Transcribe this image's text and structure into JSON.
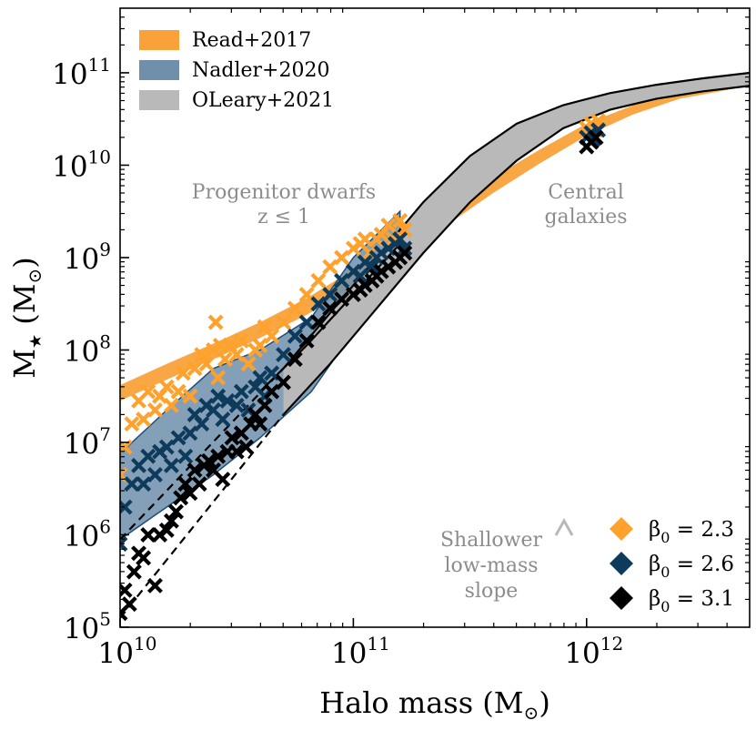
{
  "chart_data": {
    "type": "scatter",
    "xlabel": "Halo mass (M",
    "ylabel_main": "M",
    "ylabel_unit": "(M",
    "xscale": "log",
    "yscale": "log",
    "xlim": [
      10000000000.0,
      5000000000000.0
    ],
    "ylim": [
      100000.0,
      500000000000.0
    ],
    "grid": false,
    "x_ticks": [
      {
        "exp": 10,
        "base": "10",
        "power": "10"
      },
      {
        "exp": 11,
        "base": "10",
        "power": "11"
      },
      {
        "exp": 12,
        "base": "10",
        "power": "12"
      }
    ],
    "y_ticks": [
      {
        "exp": 5,
        "base": "10",
        "power": "5"
      },
      {
        "exp": 6,
        "base": "10",
        "power": "6"
      },
      {
        "exp": 7,
        "base": "10",
        "power": "7"
      },
      {
        "exp": 8,
        "base": "10",
        "power": "8"
      },
      {
        "exp": 9,
        "base": "10",
        "power": "9"
      },
      {
        "exp": 10,
        "base": "10",
        "power": "10"
      },
      {
        "exp": 11,
        "base": "10",
        "power": "11"
      }
    ],
    "bands": [
      {
        "name": "Read+2017",
        "color": "#f9a23a",
        "opacity": 0.95,
        "logx": [
          10.0,
          10.2,
          10.4,
          10.6,
          10.8,
          11.0,
          11.2,
          11.4,
          11.6,
          11.8,
          12.0,
          12.2,
          12.4,
          12.7
        ],
        "lower": [
          7.45,
          7.68,
          7.9,
          8.13,
          8.38,
          8.68,
          9.0,
          9.35,
          9.7,
          10.02,
          10.32,
          10.55,
          10.72,
          10.86
        ],
        "upper": [
          7.62,
          7.85,
          8.07,
          8.3,
          8.56,
          8.87,
          9.2,
          9.55,
          9.87,
          10.17,
          10.45,
          10.65,
          10.8,
          10.94
        ]
      },
      {
        "name": "Nadler+2020",
        "color": "#6f8fab",
        "opacity": 0.85,
        "logx": [
          10.0,
          10.2,
          10.4,
          10.6,
          10.82,
          11.0,
          11.2
        ],
        "lower": [
          5.95,
          6.3,
          6.65,
          7.05,
          7.55,
          8.2,
          8.95
        ],
        "upper": [
          6.88,
          7.35,
          7.8,
          8.0,
          8.35,
          9.0,
          9.5
        ]
      },
      {
        "name": "OLeary+2021",
        "color": "#b9b9b9",
        "opacity": 1.0,
        "logx": [
          10.7,
          10.9,
          11.1,
          11.3,
          11.5,
          11.7,
          11.9,
          12.1,
          12.3,
          12.5,
          12.7
        ],
        "lower": [
          7.3,
          7.85,
          8.45,
          9.05,
          9.6,
          10.05,
          10.4,
          10.6,
          10.72,
          10.8,
          10.86
        ],
        "upper": [
          7.8,
          8.4,
          9.0,
          9.6,
          10.1,
          10.45,
          10.65,
          10.78,
          10.87,
          10.94,
          11.0
        ]
      }
    ],
    "lines": [
      {
        "name": "OLeary-upper-solid",
        "style": "solid",
        "logx": [
          10.7,
          10.9,
          11.1,
          11.3,
          11.5,
          11.7,
          11.9,
          12.1,
          12.3,
          12.5,
          12.7
        ],
        "logy": [
          7.8,
          8.4,
          9.0,
          9.6,
          10.1,
          10.45,
          10.65,
          10.78,
          10.87,
          10.94,
          11.0
        ]
      },
      {
        "name": "OLeary-lower-solid",
        "style": "solid",
        "logx": [
          10.7,
          10.9,
          11.1,
          11.3,
          11.5,
          11.7,
          11.9,
          12.1,
          12.3,
          12.5,
          12.7
        ],
        "logy": [
          7.3,
          7.85,
          8.45,
          9.05,
          9.6,
          10.05,
          10.4,
          10.6,
          10.72,
          10.8,
          10.86
        ]
      },
      {
        "name": "Nadler-mid-solid",
        "style": "solid",
        "logx": [
          10.6,
          10.8,
          11.0,
          11.2
        ],
        "logy": [
          7.55,
          8.05,
          8.6,
          9.15
        ]
      },
      {
        "name": "dashed-extension-upper",
        "style": "dashed",
        "logx": [
          10.0,
          10.7
        ],
        "logy": [
          5.95,
          7.8
        ]
      },
      {
        "name": "dashed-extension-lower",
        "style": "dashed",
        "logx": [
          10.0,
          10.7
        ],
        "logy": [
          5.1,
          7.3
        ]
      }
    ],
    "series": [
      {
        "name": "β0 = 2.3",
        "marker": "x",
        "color": "#ffa22d",
        "points": [
          [
            10.0,
            6.65
          ],
          [
            10.02,
            6.95
          ],
          [
            10.05,
            7.2
          ],
          [
            10.08,
            7.45
          ],
          [
            10.1,
            7.25
          ],
          [
            10.12,
            7.55
          ],
          [
            10.15,
            7.35
          ],
          [
            10.17,
            7.5
          ],
          [
            10.2,
            7.6
          ],
          [
            10.22,
            7.4
          ],
          [
            10.25,
            7.55
          ],
          [
            10.27,
            7.75
          ],
          [
            10.3,
            7.5
          ],
          [
            10.32,
            7.8
          ],
          [
            10.35,
            7.95
          ],
          [
            10.37,
            7.85
          ],
          [
            10.4,
            8.0
          ],
          [
            10.41,
            8.3
          ],
          [
            10.42,
            7.7
          ],
          [
            10.43,
            8.05
          ],
          [
            10.45,
            7.9
          ],
          [
            10.47,
            8.05
          ],
          [
            10.5,
            7.95
          ],
          [
            10.52,
            8.1
          ],
          [
            10.55,
            7.85
          ],
          [
            10.58,
            8.0
          ],
          [
            10.6,
            8.05
          ],
          [
            10.62,
            8.25
          ],
          [
            10.65,
            8.15
          ],
          [
            10.7,
            8.3
          ],
          [
            10.75,
            8.45
          ],
          [
            10.8,
            8.6
          ],
          [
            10.85,
            8.75
          ],
          [
            10.9,
            8.9
          ],
          [
            10.95,
            9.0
          ],
          [
            11.0,
            9.1
          ],
          [
            11.03,
            9.15
          ],
          [
            11.05,
            9.2
          ],
          [
            11.07,
            9.05
          ],
          [
            11.1,
            9.2
          ],
          [
            11.12,
            9.25
          ],
          [
            11.15,
            9.35
          ],
          [
            11.17,
            9.2
          ],
          [
            11.2,
            9.4
          ],
          [
            11.22,
            9.3
          ],
          [
            12.0,
            10.4
          ],
          [
            12.02,
            10.45
          ],
          [
            12.05,
            10.48
          ],
          [
            12.04,
            10.38
          ]
        ]
      },
      {
        "name": "β0 = 2.6",
        "marker": "x",
        "color": "#0e3b5c",
        "points": [
          [
            10.0,
            5.9
          ],
          [
            10.02,
            6.3
          ],
          [
            10.05,
            6.55
          ],
          [
            10.08,
            6.75
          ],
          [
            10.1,
            6.55
          ],
          [
            10.12,
            6.85
          ],
          [
            10.15,
            6.65
          ],
          [
            10.17,
            6.9
          ],
          [
            10.2,
            6.95
          ],
          [
            10.22,
            6.75
          ],
          [
            10.25,
            7.05
          ],
          [
            10.28,
            6.85
          ],
          [
            10.3,
            7.1
          ],
          [
            10.32,
            7.3
          ],
          [
            10.35,
            7.2
          ],
          [
            10.37,
            7.4
          ],
          [
            10.4,
            7.35
          ],
          [
            10.42,
            7.5
          ],
          [
            10.44,
            7.25
          ],
          [
            10.46,
            7.45
          ],
          [
            10.5,
            7.4
          ],
          [
            10.52,
            7.55
          ],
          [
            10.55,
            7.35
          ],
          [
            10.58,
            7.6
          ],
          [
            10.6,
            7.7
          ],
          [
            10.62,
            7.5
          ],
          [
            10.65,
            7.75
          ],
          [
            10.7,
            7.95
          ],
          [
            10.75,
            8.15
          ],
          [
            10.8,
            8.3
          ],
          [
            10.85,
            8.5
          ],
          [
            10.9,
            8.6
          ],
          [
            10.95,
            8.75
          ],
          [
            11.0,
            8.85
          ],
          [
            11.03,
            8.8
          ],
          [
            11.05,
            8.95
          ],
          [
            11.08,
            8.9
          ],
          [
            11.1,
            9.0
          ],
          [
            11.12,
            9.05
          ],
          [
            11.15,
            9.1
          ],
          [
            11.18,
            9.15
          ],
          [
            11.2,
            9.2
          ],
          [
            11.22,
            9.1
          ],
          [
            12.0,
            10.3
          ],
          [
            12.02,
            10.35
          ],
          [
            12.05,
            10.38
          ],
          [
            12.03,
            10.28
          ]
        ]
      },
      {
        "name": "β0 = 3.1",
        "marker": "x",
        "color": "#000000",
        "points": [
          [
            10.0,
            5.15
          ],
          [
            10.02,
            5.4
          ],
          [
            10.04,
            5.25
          ],
          [
            10.06,
            5.6
          ],
          [
            10.08,
            5.8
          ],
          [
            10.1,
            5.75
          ],
          [
            10.12,
            6.0
          ],
          [
            10.15,
            5.45
          ],
          [
            10.17,
            6.0
          ],
          [
            10.2,
            6.05
          ],
          [
            10.22,
            6.15
          ],
          [
            10.24,
            6.25
          ],
          [
            10.26,
            6.4
          ],
          [
            10.28,
            6.55
          ],
          [
            10.3,
            6.45
          ],
          [
            10.32,
            6.7
          ],
          [
            10.34,
            6.55
          ],
          [
            10.36,
            6.75
          ],
          [
            10.38,
            6.8
          ],
          [
            10.4,
            6.7
          ],
          [
            10.42,
            6.85
          ],
          [
            10.44,
            6.6
          ],
          [
            10.46,
            6.9
          ],
          [
            10.48,
            7.05
          ],
          [
            10.5,
            6.9
          ],
          [
            10.52,
            7.1
          ],
          [
            10.54,
            6.95
          ],
          [
            10.56,
            7.2
          ],
          [
            10.58,
            7.3
          ],
          [
            10.6,
            7.2
          ],
          [
            10.62,
            7.4
          ],
          [
            10.65,
            7.55
          ],
          [
            10.7,
            7.65
          ],
          [
            10.75,
            7.9
          ],
          [
            10.8,
            8.1
          ],
          [
            10.85,
            8.3
          ],
          [
            10.9,
            8.45
          ],
          [
            10.95,
            8.55
          ],
          [
            11.0,
            8.6
          ],
          [
            11.03,
            8.65
          ],
          [
            11.05,
            8.7
          ],
          [
            11.08,
            8.75
          ],
          [
            11.1,
            8.8
          ],
          [
            11.12,
            8.85
          ],
          [
            11.15,
            8.9
          ],
          [
            11.18,
            8.95
          ],
          [
            11.2,
            9.0
          ],
          [
            11.22,
            9.05
          ],
          [
            12.0,
            10.2
          ],
          [
            12.02,
            10.25
          ],
          [
            12.04,
            10.3
          ]
        ]
      }
    ],
    "legend_bands": [
      {
        "label": "Read+2017",
        "color": "#f9a23a"
      },
      {
        "label": "Nadler+2020",
        "color": "#6f8fab"
      },
      {
        "label": "OLeary+2021",
        "color": "#b9b9b9"
      }
    ],
    "legend_markers": [
      {
        "label_base": "β",
        "label_sub": "0",
        "label_value": " = 2.3",
        "color": "#ffa22d"
      },
      {
        "label_base": "β",
        "label_sub": "0",
        "label_value": " = 2.6",
        "color": "#0e3b5c"
      },
      {
        "label_base": "β",
        "label_sub": "0",
        "label_value": " = 3.1",
        "color": "#000000"
      }
    ],
    "annotations": {
      "progenitor_line1": "Progenitor dwarfs",
      "progenitor_line2": "z ≤ 1",
      "central_line1": "Central",
      "central_line2": "galaxies",
      "shallower_line1": "Shallower",
      "shallower_line2": "low-mass",
      "shallower_line3": "slope"
    }
  }
}
